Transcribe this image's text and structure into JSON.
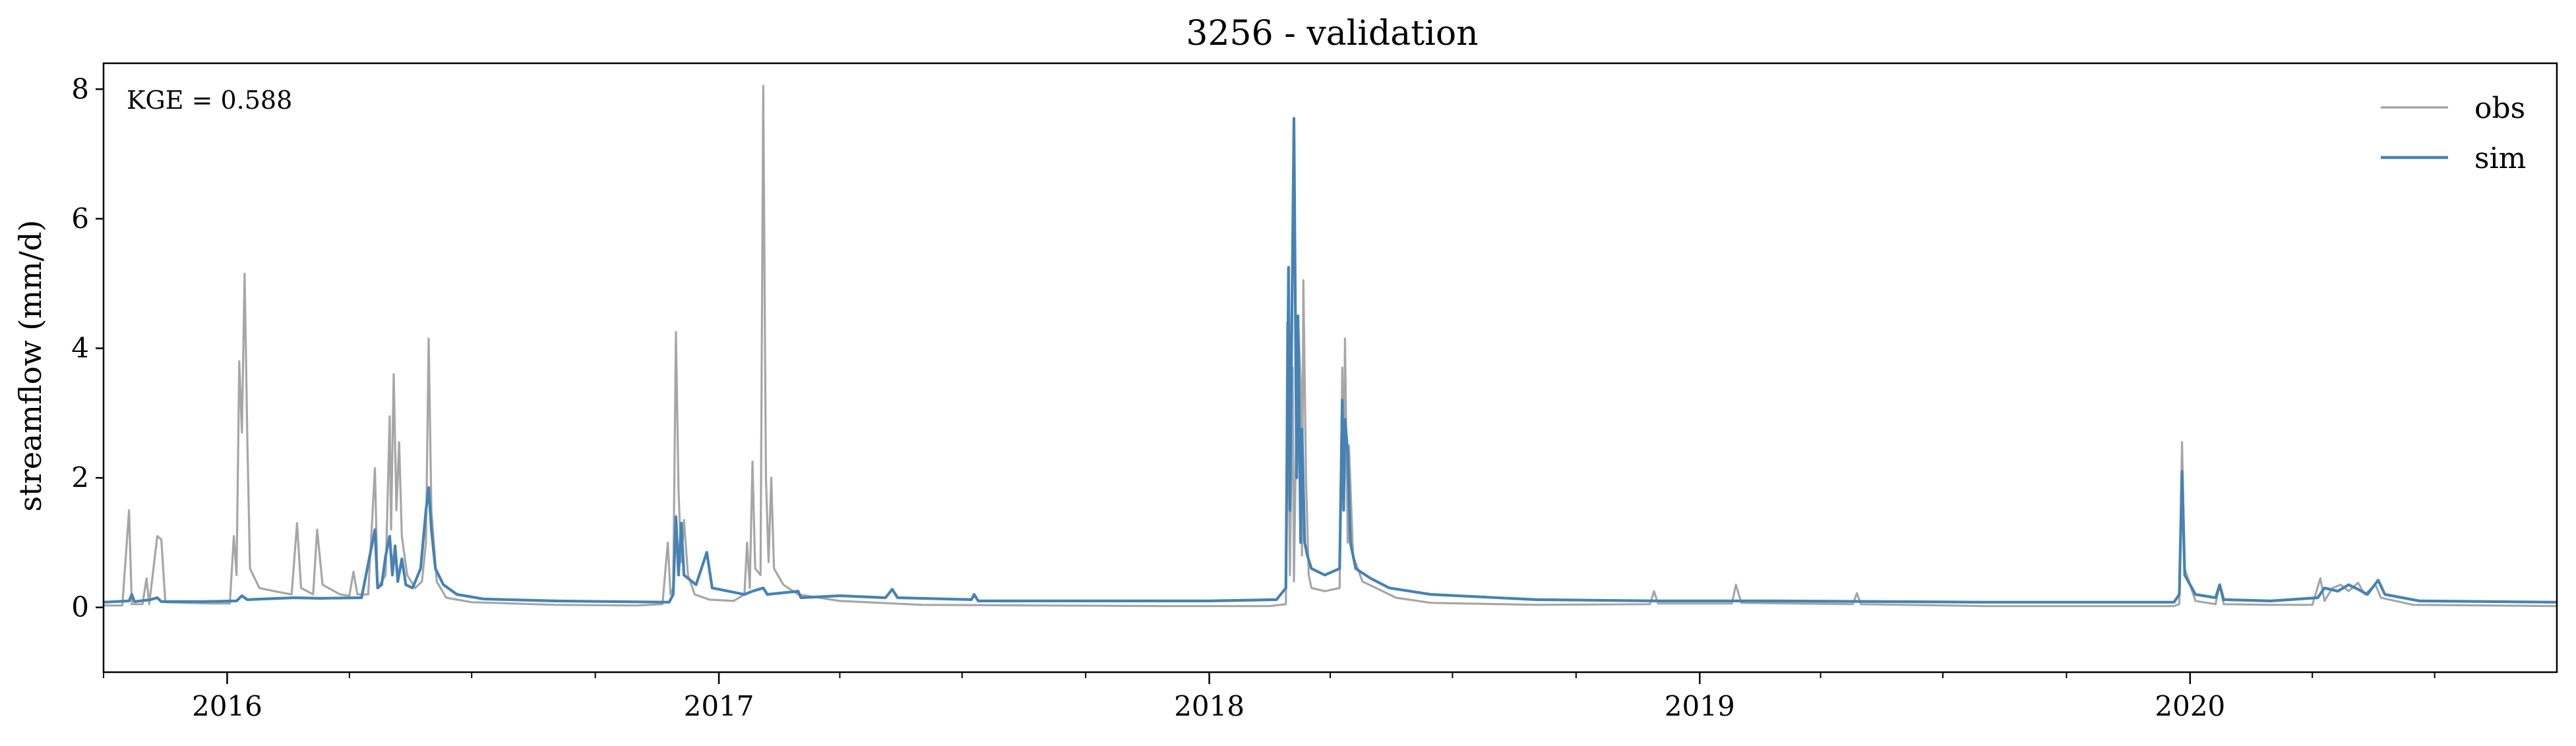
{
  "chart_data": {
    "type": "line",
    "title": "3256 - validation",
    "xlabel": "",
    "ylabel": "streamflow (mm/d)",
    "xlim": [
      "2015-10-01",
      "2020-09-30"
    ],
    "ylim": [
      -1,
      8.4
    ],
    "yticks": [
      0,
      2,
      4,
      6,
      8
    ],
    "xticks": [
      {
        "date": "2016-01-01",
        "label": "2016"
      },
      {
        "date": "2017-01-01",
        "label": "2017"
      },
      {
        "date": "2018-01-01",
        "label": "2018"
      },
      {
        "date": "2019-01-01",
        "label": "2019"
      },
      {
        "date": "2020-01-01",
        "label": "2020"
      }
    ],
    "annotation": "KGE = 0.588",
    "legend_position": "top-right",
    "grid": false,
    "series": [
      {
        "name": "obs",
        "color": "#a6a6a6",
        "points": [
          [
            "2015-10-01",
            0.03
          ],
          [
            "2015-10-15",
            0.03
          ],
          [
            "2015-10-20",
            1.5
          ],
          [
            "2015-10-22",
            0.05
          ],
          [
            "2015-10-30",
            0.05
          ],
          [
            "2015-11-02",
            0.45
          ],
          [
            "2015-11-04",
            0.05
          ],
          [
            "2015-11-10",
            1.1
          ],
          [
            "2015-11-13",
            1.05
          ],
          [
            "2015-11-16",
            0.08
          ],
          [
            "2015-12-01",
            0.07
          ],
          [
            "2015-12-20",
            0.06
          ],
          [
            "2016-01-03",
            0.06
          ],
          [
            "2016-01-06",
            1.1
          ],
          [
            "2016-01-08",
            0.5
          ],
          [
            "2016-01-10",
            3.8
          ],
          [
            "2016-01-12",
            2.7
          ],
          [
            "2016-01-14",
            5.15
          ],
          [
            "2016-01-16",
            2.6
          ],
          [
            "2016-01-18",
            0.6
          ],
          [
            "2016-01-25",
            0.3
          ],
          [
            "2016-02-05",
            0.25
          ],
          [
            "2016-02-18",
            0.2
          ],
          [
            "2016-02-22",
            1.3
          ],
          [
            "2016-02-25",
            0.3
          ],
          [
            "2016-03-05",
            0.2
          ],
          [
            "2016-03-08",
            1.2
          ],
          [
            "2016-03-12",
            0.35
          ],
          [
            "2016-03-25",
            0.2
          ],
          [
            "2016-04-01",
            0.18
          ],
          [
            "2016-04-04",
            0.55
          ],
          [
            "2016-04-07",
            0.2
          ],
          [
            "2016-04-15",
            0.2
          ],
          [
            "2016-04-20",
            2.15
          ],
          [
            "2016-04-22",
            0.3
          ],
          [
            "2016-04-28",
            0.5
          ],
          [
            "2016-05-01",
            2.95
          ],
          [
            "2016-05-02",
            1.2
          ],
          [
            "2016-05-04",
            3.6
          ],
          [
            "2016-05-06",
            1.5
          ],
          [
            "2016-05-08",
            2.55
          ],
          [
            "2016-05-10",
            1.1
          ],
          [
            "2016-05-14",
            0.5
          ],
          [
            "2016-05-20",
            0.3
          ],
          [
            "2016-05-25",
            0.4
          ],
          [
            "2016-05-28",
            1.0
          ],
          [
            "2016-05-30",
            4.15
          ],
          [
            "2016-06-01",
            1.5
          ],
          [
            "2016-06-05",
            0.4
          ],
          [
            "2016-06-12",
            0.15
          ],
          [
            "2016-07-01",
            0.08
          ],
          [
            "2016-09-01",
            0.04
          ],
          [
            "2016-11-01",
            0.03
          ],
          [
            "2016-11-20",
            0.05
          ],
          [
            "2016-11-24",
            1.0
          ],
          [
            "2016-11-26",
            0.2
          ],
          [
            "2016-11-28",
            0.3
          ],
          [
            "2016-11-30",
            4.25
          ],
          [
            "2016-12-02",
            1.8
          ],
          [
            "2016-12-04",
            0.7
          ],
          [
            "2016-12-06",
            1.35
          ],
          [
            "2016-12-09",
            0.5
          ],
          [
            "2016-12-14",
            0.2
          ],
          [
            "2016-12-25",
            0.12
          ],
          [
            "2017-01-12",
            0.1
          ],
          [
            "2017-01-20",
            0.2
          ],
          [
            "2017-01-22",
            1.0
          ],
          [
            "2017-01-24",
            0.3
          ],
          [
            "2017-01-26",
            2.25
          ],
          [
            "2017-01-28",
            0.6
          ],
          [
            "2017-02-01",
            0.5
          ],
          [
            "2017-02-03",
            8.05
          ],
          [
            "2017-02-05",
            2.0
          ],
          [
            "2017-02-07",
            0.7
          ],
          [
            "2017-02-09",
            2.0
          ],
          [
            "2017-02-11",
            0.6
          ],
          [
            "2017-02-18",
            0.35
          ],
          [
            "2017-03-01",
            0.2
          ],
          [
            "2017-04-01",
            0.1
          ],
          [
            "2017-06-01",
            0.04
          ],
          [
            "2017-09-01",
            0.03
          ],
          [
            "2017-12-01",
            0.02
          ],
          [
            "2018-02-15",
            0.02
          ],
          [
            "2018-02-27",
            0.05
          ],
          [
            "2018-02-28",
            4.4
          ],
          [
            "2018-03-02",
            0.5
          ],
          [
            "2018-03-04",
            3.7
          ],
          [
            "2018-03-05",
            0.4
          ],
          [
            "2018-03-08",
            4.5
          ],
          [
            "2018-03-10",
            3.5
          ],
          [
            "2018-03-11",
            0.8
          ],
          [
            "2018-03-12",
            5.05
          ],
          [
            "2018-03-14",
            2.0
          ],
          [
            "2018-03-16",
            0.5
          ],
          [
            "2018-03-18",
            0.3
          ],
          [
            "2018-03-28",
            0.25
          ],
          [
            "2018-04-08",
            0.3
          ],
          [
            "2018-04-10",
            3.7
          ],
          [
            "2018-04-11",
            1.5
          ],
          [
            "2018-04-12",
            4.15
          ],
          [
            "2018-04-14",
            1.0
          ],
          [
            "2018-04-15",
            2.5
          ],
          [
            "2018-04-18",
            0.8
          ],
          [
            "2018-04-25",
            0.4
          ],
          [
            "2018-05-05",
            0.3
          ],
          [
            "2018-05-20",
            0.15
          ],
          [
            "2018-06-15",
            0.07
          ],
          [
            "2018-09-01",
            0.04
          ],
          [
            "2018-11-25",
            0.05
          ],
          [
            "2018-11-28",
            0.25
          ],
          [
            "2018-12-01",
            0.06
          ],
          [
            "2019-01-25",
            0.06
          ],
          [
            "2019-01-28",
            0.35
          ],
          [
            "2019-02-01",
            0.07
          ],
          [
            "2019-04-25",
            0.05
          ],
          [
            "2019-04-28",
            0.22
          ],
          [
            "2019-05-01",
            0.05
          ],
          [
            "2019-08-01",
            0.02
          ],
          [
            "2019-12-20",
            0.02
          ],
          [
            "2019-12-24",
            0.05
          ],
          [
            "2019-12-26",
            2.55
          ],
          [
            "2019-12-28",
            0.6
          ],
          [
            "2020-01-05",
            0.1
          ],
          [
            "2020-01-20",
            0.05
          ],
          [
            "2020-01-23",
            0.35
          ],
          [
            "2020-01-26",
            0.05
          ],
          [
            "2020-03-01",
            0.04
          ],
          [
            "2020-04-01",
            0.04
          ],
          [
            "2020-04-07",
            0.45
          ],
          [
            "2020-04-10",
            0.1
          ],
          [
            "2020-04-16",
            0.3
          ],
          [
            "2020-04-22",
            0.35
          ],
          [
            "2020-04-28",
            0.25
          ],
          [
            "2020-05-05",
            0.38
          ],
          [
            "2020-05-10",
            0.2
          ],
          [
            "2020-05-18",
            0.35
          ],
          [
            "2020-05-22",
            0.15
          ],
          [
            "2020-06-15",
            0.04
          ],
          [
            "2020-09-30",
            0.02
          ]
        ]
      },
      {
        "name": "sim",
        "color": "#4682b4",
        "points": [
          [
            "2015-10-01",
            0.08
          ],
          [
            "2015-10-20",
            0.1
          ],
          [
            "2015-10-22",
            0.2
          ],
          [
            "2015-10-24",
            0.09
          ],
          [
            "2015-11-05",
            0.12
          ],
          [
            "2015-11-10",
            0.15
          ],
          [
            "2015-11-13",
            0.09
          ],
          [
            "2015-12-15",
            0.09
          ],
          [
            "2016-01-08",
            0.1
          ],
          [
            "2016-01-12",
            0.18
          ],
          [
            "2016-01-16",
            0.12
          ],
          [
            "2016-02-20",
            0.15
          ],
          [
            "2016-03-10",
            0.14
          ],
          [
            "2016-04-10",
            0.15
          ],
          [
            "2016-04-20",
            1.2
          ],
          [
            "2016-04-22",
            0.3
          ],
          [
            "2016-04-25",
            0.35
          ],
          [
            "2016-04-28",
            0.8
          ],
          [
            "2016-05-01",
            1.1
          ],
          [
            "2016-05-03",
            0.5
          ],
          [
            "2016-05-05",
            0.95
          ],
          [
            "2016-05-07",
            0.4
          ],
          [
            "2016-05-10",
            0.75
          ],
          [
            "2016-05-13",
            0.35
          ],
          [
            "2016-05-18",
            0.3
          ],
          [
            "2016-05-24",
            0.6
          ],
          [
            "2016-05-28",
            1.5
          ],
          [
            "2016-05-30",
            1.85
          ],
          [
            "2016-06-01",
            1.2
          ],
          [
            "2016-06-04",
            0.6
          ],
          [
            "2016-06-10",
            0.35
          ],
          [
            "2016-06-20",
            0.2
          ],
          [
            "2016-07-10",
            0.13
          ],
          [
            "2016-09-01",
            0.1
          ],
          [
            "2016-11-25",
            0.08
          ],
          [
            "2016-11-28",
            0.2
          ],
          [
            "2016-11-30",
            1.4
          ],
          [
            "2016-12-02",
            0.5
          ],
          [
            "2016-12-04",
            1.3
          ],
          [
            "2016-12-06",
            0.5
          ],
          [
            "2016-12-15",
            0.35
          ],
          [
            "2016-12-23",
            0.85
          ],
          [
            "2016-12-27",
            0.3
          ],
          [
            "2017-01-20",
            0.2
          ],
          [
            "2017-01-26",
            0.25
          ],
          [
            "2017-02-03",
            0.3
          ],
          [
            "2017-02-06",
            0.2
          ],
          [
            "2017-03-01",
            0.25
          ],
          [
            "2017-03-03",
            0.15
          ],
          [
            "2017-04-01",
            0.18
          ],
          [
            "2017-05-05",
            0.15
          ],
          [
            "2017-05-10",
            0.28
          ],
          [
            "2017-05-14",
            0.15
          ],
          [
            "2017-07-08",
            0.12
          ],
          [
            "2017-07-10",
            0.2
          ],
          [
            "2017-07-13",
            0.1
          ],
          [
            "2017-12-31",
            0.1
          ],
          [
            "2018-02-20",
            0.12
          ],
          [
            "2018-02-27",
            0.3
          ],
          [
            "2018-03-01",
            5.25
          ],
          [
            "2018-03-02",
            1.5
          ],
          [
            "2018-03-05",
            7.55
          ],
          [
            "2018-03-07",
            2.0
          ],
          [
            "2018-03-08",
            4.5
          ],
          [
            "2018-03-10",
            1.0
          ],
          [
            "2018-03-11",
            2.75
          ],
          [
            "2018-03-13",
            1.0
          ],
          [
            "2018-03-15",
            0.8
          ],
          [
            "2018-03-18",
            0.6
          ],
          [
            "2018-03-28",
            0.5
          ],
          [
            "2018-04-08",
            0.6
          ],
          [
            "2018-04-10",
            3.2
          ],
          [
            "2018-04-11",
            1.5
          ],
          [
            "2018-04-12",
            2.9
          ],
          [
            "2018-04-14",
            2.4
          ],
          [
            "2018-04-16",
            1.0
          ],
          [
            "2018-04-20",
            0.6
          ],
          [
            "2018-05-01",
            0.45
          ],
          [
            "2018-05-15",
            0.3
          ],
          [
            "2018-06-15",
            0.2
          ],
          [
            "2018-09-01",
            0.12
          ],
          [
            "2018-12-01",
            0.1
          ],
          [
            "2019-03-01",
            0.1
          ],
          [
            "2019-08-01",
            0.08
          ],
          [
            "2019-12-20",
            0.08
          ],
          [
            "2019-12-24",
            0.2
          ],
          [
            "2019-12-26",
            2.1
          ],
          [
            "2019-12-28",
            0.5
          ],
          [
            "2020-01-05",
            0.2
          ],
          [
            "2020-01-20",
            0.15
          ],
          [
            "2020-01-23",
            0.35
          ],
          [
            "2020-01-26",
            0.12
          ],
          [
            "2020-03-01",
            0.1
          ],
          [
            "2020-04-05",
            0.15
          ],
          [
            "2020-04-10",
            0.3
          ],
          [
            "2020-04-20",
            0.25
          ],
          [
            "2020-04-28",
            0.35
          ],
          [
            "2020-05-05",
            0.28
          ],
          [
            "2020-05-12",
            0.2
          ],
          [
            "2020-05-20",
            0.42
          ],
          [
            "2020-05-25",
            0.2
          ],
          [
            "2020-06-20",
            0.1
          ],
          [
            "2020-09-30",
            0.08
          ]
        ]
      }
    ]
  }
}
